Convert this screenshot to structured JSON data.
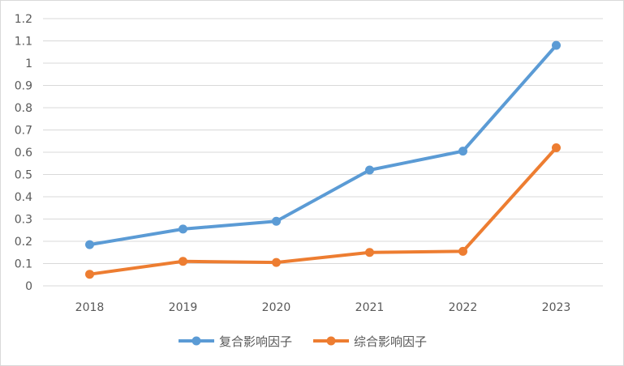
{
  "chart_data": {
    "type": "line",
    "categories": [
      "2018",
      "2019",
      "2020",
      "2021",
      "2022",
      "2023"
    ],
    "series": [
      {
        "name": "复合影响因子",
        "color": "#5b9bd5",
        "values": [
          0.185,
          0.255,
          0.29,
          0.52,
          0.605,
          1.08
        ]
      },
      {
        "name": "综合影响因子",
        "color": "#ed7d31",
        "values": [
          0.052,
          0.11,
          0.105,
          0.15,
          0.155,
          0.62
        ]
      }
    ],
    "yticks": [
      "0",
      "0.1",
      "0.2",
      "0.3",
      "0.4",
      "0.5",
      "0.6",
      "0.7",
      "0.8",
      "0.9",
      "1",
      "1.1",
      "1.2"
    ],
    "ylim": [
      0,
      1.2
    ],
    "grid": true,
    "legend_position": "bottom"
  }
}
